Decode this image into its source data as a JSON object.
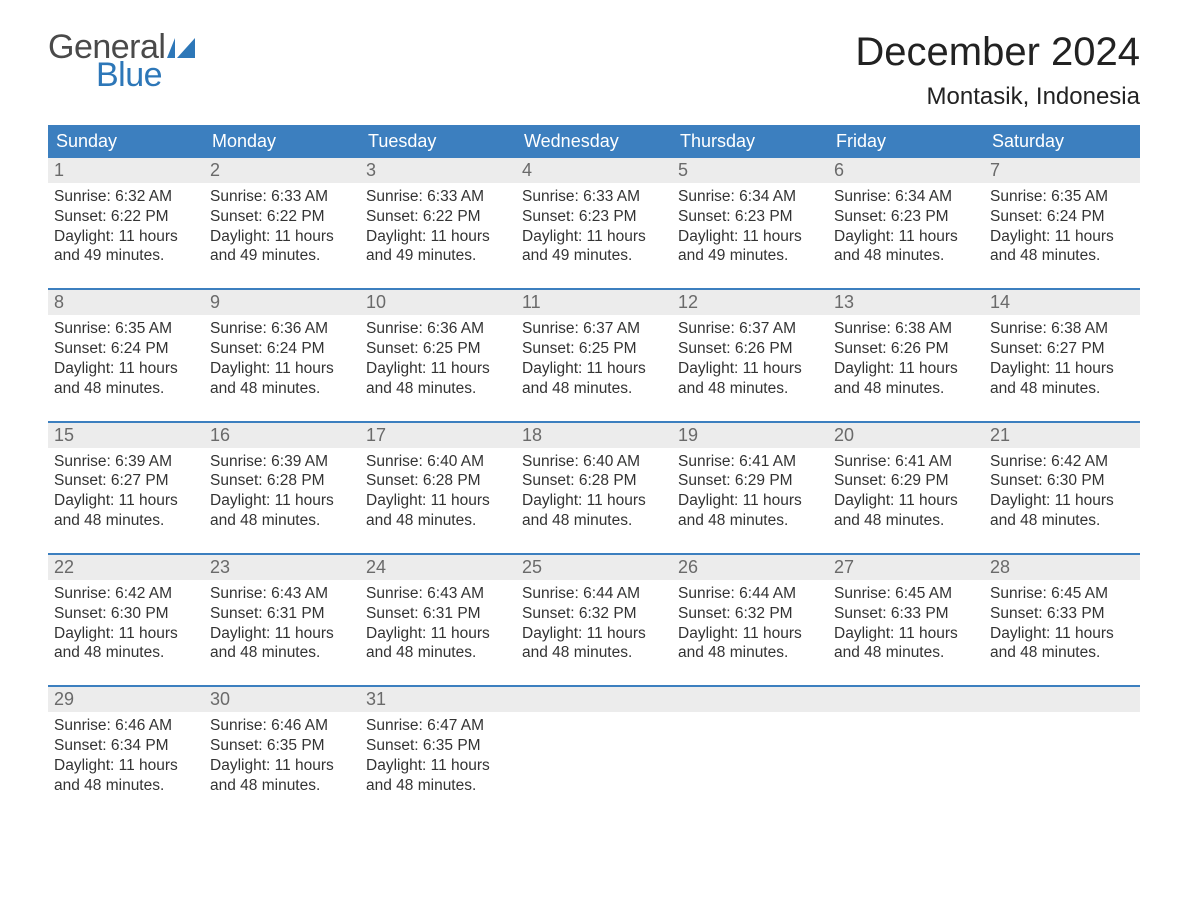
{
  "brand": {
    "word1": "General",
    "word2": "Blue",
    "word1_color": "#4a4a4a",
    "word2_color": "#2d77b8"
  },
  "title": "December 2024",
  "location": "Montasik, Indonesia",
  "colors": {
    "header_bg": "#3c7fbf",
    "header_text": "#ffffff",
    "daynum_bg": "#ececec",
    "daynum_text": "#6a6a6a",
    "body_text": "#333333",
    "week_border": "#3c7fbf",
    "page_bg": "#ffffff"
  },
  "fonts": {
    "title_size_pt": 30,
    "location_size_pt": 18,
    "weekday_size_pt": 14,
    "body_size_pt": 12
  },
  "weekdays": [
    "Sunday",
    "Monday",
    "Tuesday",
    "Wednesday",
    "Thursday",
    "Friday",
    "Saturday"
  ],
  "labels": {
    "sunrise": "Sunrise:",
    "sunset": "Sunset:",
    "daylight": "Daylight:"
  },
  "weeks": [
    [
      {
        "n": "1",
        "sunrise": "6:32 AM",
        "sunset": "6:22 PM",
        "daylight": "11 hours and 49 minutes."
      },
      {
        "n": "2",
        "sunrise": "6:33 AM",
        "sunset": "6:22 PM",
        "daylight": "11 hours and 49 minutes."
      },
      {
        "n": "3",
        "sunrise": "6:33 AM",
        "sunset": "6:22 PM",
        "daylight": "11 hours and 49 minutes."
      },
      {
        "n": "4",
        "sunrise": "6:33 AM",
        "sunset": "6:23 PM",
        "daylight": "11 hours and 49 minutes."
      },
      {
        "n": "5",
        "sunrise": "6:34 AM",
        "sunset": "6:23 PM",
        "daylight": "11 hours and 49 minutes."
      },
      {
        "n": "6",
        "sunrise": "6:34 AM",
        "sunset": "6:23 PM",
        "daylight": "11 hours and 48 minutes."
      },
      {
        "n": "7",
        "sunrise": "6:35 AM",
        "sunset": "6:24 PM",
        "daylight": "11 hours and 48 minutes."
      }
    ],
    [
      {
        "n": "8",
        "sunrise": "6:35 AM",
        "sunset": "6:24 PM",
        "daylight": "11 hours and 48 minutes."
      },
      {
        "n": "9",
        "sunrise": "6:36 AM",
        "sunset": "6:24 PM",
        "daylight": "11 hours and 48 minutes."
      },
      {
        "n": "10",
        "sunrise": "6:36 AM",
        "sunset": "6:25 PM",
        "daylight": "11 hours and 48 minutes."
      },
      {
        "n": "11",
        "sunrise": "6:37 AM",
        "sunset": "6:25 PM",
        "daylight": "11 hours and 48 minutes."
      },
      {
        "n": "12",
        "sunrise": "6:37 AM",
        "sunset": "6:26 PM",
        "daylight": "11 hours and 48 minutes."
      },
      {
        "n": "13",
        "sunrise": "6:38 AM",
        "sunset": "6:26 PM",
        "daylight": "11 hours and 48 minutes."
      },
      {
        "n": "14",
        "sunrise": "6:38 AM",
        "sunset": "6:27 PM",
        "daylight": "11 hours and 48 minutes."
      }
    ],
    [
      {
        "n": "15",
        "sunrise": "6:39 AM",
        "sunset": "6:27 PM",
        "daylight": "11 hours and 48 minutes."
      },
      {
        "n": "16",
        "sunrise": "6:39 AM",
        "sunset": "6:28 PM",
        "daylight": "11 hours and 48 minutes."
      },
      {
        "n": "17",
        "sunrise": "6:40 AM",
        "sunset": "6:28 PM",
        "daylight": "11 hours and 48 minutes."
      },
      {
        "n": "18",
        "sunrise": "6:40 AM",
        "sunset": "6:28 PM",
        "daylight": "11 hours and 48 minutes."
      },
      {
        "n": "19",
        "sunrise": "6:41 AM",
        "sunset": "6:29 PM",
        "daylight": "11 hours and 48 minutes."
      },
      {
        "n": "20",
        "sunrise": "6:41 AM",
        "sunset": "6:29 PM",
        "daylight": "11 hours and 48 minutes."
      },
      {
        "n": "21",
        "sunrise": "6:42 AM",
        "sunset": "6:30 PM",
        "daylight": "11 hours and 48 minutes."
      }
    ],
    [
      {
        "n": "22",
        "sunrise": "6:42 AM",
        "sunset": "6:30 PM",
        "daylight": "11 hours and 48 minutes."
      },
      {
        "n": "23",
        "sunrise": "6:43 AM",
        "sunset": "6:31 PM",
        "daylight": "11 hours and 48 minutes."
      },
      {
        "n": "24",
        "sunrise": "6:43 AM",
        "sunset": "6:31 PM",
        "daylight": "11 hours and 48 minutes."
      },
      {
        "n": "25",
        "sunrise": "6:44 AM",
        "sunset": "6:32 PM",
        "daylight": "11 hours and 48 minutes."
      },
      {
        "n": "26",
        "sunrise": "6:44 AM",
        "sunset": "6:32 PM",
        "daylight": "11 hours and 48 minutes."
      },
      {
        "n": "27",
        "sunrise": "6:45 AM",
        "sunset": "6:33 PM",
        "daylight": "11 hours and 48 minutes."
      },
      {
        "n": "28",
        "sunrise": "6:45 AM",
        "sunset": "6:33 PM",
        "daylight": "11 hours and 48 minutes."
      }
    ],
    [
      {
        "n": "29",
        "sunrise": "6:46 AM",
        "sunset": "6:34 PM",
        "daylight": "11 hours and 48 minutes."
      },
      {
        "n": "30",
        "sunrise": "6:46 AM",
        "sunset": "6:35 PM",
        "daylight": "11 hours and 48 minutes."
      },
      {
        "n": "31",
        "sunrise": "6:47 AM",
        "sunset": "6:35 PM",
        "daylight": "11 hours and 48 minutes."
      },
      {
        "empty": true
      },
      {
        "empty": true
      },
      {
        "empty": true
      },
      {
        "empty": true
      }
    ]
  ]
}
